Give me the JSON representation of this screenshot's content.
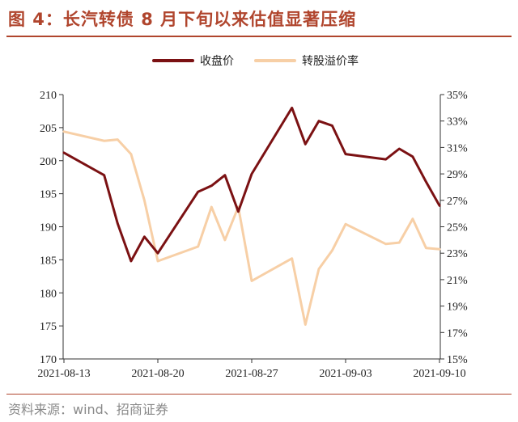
{
  "title": "图 4：长汽转债 8 月下旬以来估值显著压缩",
  "source": "资料来源：wind、招商证券",
  "chart_data": {
    "type": "line",
    "title": "图 4：长汽转债 8 月下旬以来估值显著压缩",
    "legend_position": "top",
    "grid": false,
    "x": [
      "2021-08-13",
      "2021-08-16",
      "2021-08-17",
      "2021-08-18",
      "2021-08-19",
      "2021-08-20",
      "2021-08-23",
      "2021-08-24",
      "2021-08-25",
      "2021-08-26",
      "2021-08-27",
      "2021-08-30",
      "2021-08-31",
      "2021-09-01",
      "2021-09-02",
      "2021-09-03",
      "2021-09-06",
      "2021-09-07",
      "2021-09-08",
      "2021-09-09",
      "2021-09-10"
    ],
    "x_positions": [
      0,
      3,
      4,
      5,
      6,
      7,
      10,
      11,
      12,
      13,
      14,
      17,
      18,
      19,
      20,
      21,
      24,
      25,
      26,
      27,
      28
    ],
    "x_tick_labels": [
      "2021-08-13",
      "2021-08-20",
      "2021-08-27",
      "2021-09-03",
      "2021-09-10"
    ],
    "y_left": {
      "ylim": [
        170,
        210
      ],
      "ticks": [
        "170",
        "175",
        "180",
        "185",
        "190",
        "195",
        "200",
        "205",
        "210"
      ]
    },
    "y_right": {
      "ylim": [
        0.15,
        0.35
      ],
      "ticks": [
        "15%",
        "17%",
        "19%",
        "21%",
        "23%",
        "25%",
        "27%",
        "29%",
        "31%",
        "33%",
        "35%"
      ]
    },
    "series": [
      {
        "name": "收盘价",
        "axis": "left",
        "color": "#7b1113",
        "values": [
          201.2,
          197.8,
          190.5,
          184.8,
          188.5,
          186.0,
          195.3,
          196.2,
          197.8,
          192.3,
          198.0,
          208.0,
          202.5,
          206.0,
          205.3,
          201.0,
          200.2,
          201.8,
          200.6,
          196.8,
          193.2
        ]
      },
      {
        "name": "转股溢价率",
        "axis": "right",
        "color": "#f7cfa6",
        "values": [
          0.322,
          0.315,
          0.316,
          0.305,
          0.27,
          0.224,
          0.235,
          0.265,
          0.24,
          0.265,
          0.209,
          0.226,
          0.176,
          0.218,
          0.232,
          0.252,
          0.237,
          0.238,
          0.256,
          0.234,
          0.233
        ]
      }
    ]
  }
}
